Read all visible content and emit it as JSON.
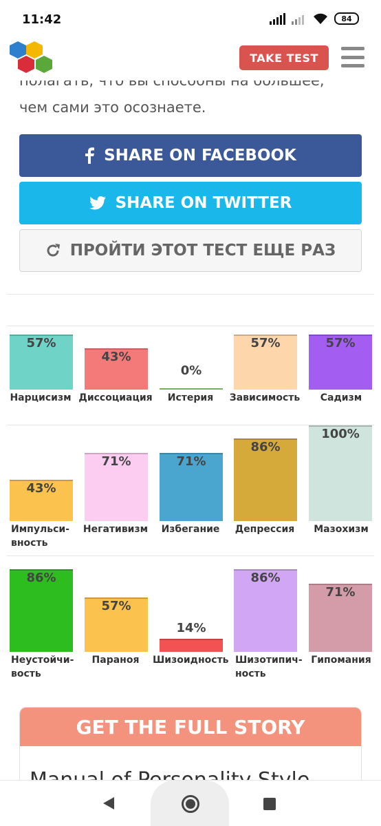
{
  "status_bar": {
    "time": "11:42",
    "battery": "84"
  },
  "header": {
    "take_test_label": "TAKE TEST"
  },
  "intro": {
    "line_cut": "полагать, что вы способны на большее,",
    "line": "чем сами это осознаете."
  },
  "buttons": {
    "facebook": "SHARE ON FACEBOOK",
    "twitter": "SHARE ON TWITTER",
    "retry": "ПРОЙТИ ЭТОТ ТЕСТ ЕЩЕ РАЗ"
  },
  "chart_data": {
    "type": "bar",
    "ylim": [
      0,
      100
    ],
    "rows": [
      {
        "categories": [
          "Нарцисизм",
          "Диссоциация",
          "Истерия",
          "Зависимость",
          "Садизм"
        ],
        "values": [
          57,
          43,
          0,
          57,
          57
        ],
        "labels": [
          "57%",
          "43%",
          "0%",
          "57%",
          "57%"
        ],
        "colors": [
          "#6fd3c7",
          "#f47a7a",
          "#8fdd6f",
          "#fdd6ab",
          "#a35df0"
        ]
      },
      {
        "categories": [
          "Импульси-вность",
          "Негативизм",
          "Избегание",
          "Депрессия",
          "Мазохизм"
        ],
        "values": [
          43,
          71,
          71,
          86,
          100
        ],
        "labels": [
          "43%",
          "71%",
          "71%",
          "86%",
          "100%"
        ],
        "colors": [
          "#fcc24e",
          "#fccdf0",
          "#4aa6cf",
          "#d6a93b",
          "#cfe4dd"
        ]
      },
      {
        "categories": [
          "Неустойчи-вость",
          "Параноя",
          "Шизоидность",
          "Шизотипич-ность",
          "Гипомания"
        ],
        "values": [
          86,
          57,
          14,
          86,
          71
        ],
        "labels": [
          "86%",
          "57%",
          "14%",
          "86%",
          "71%"
        ],
        "colors": [
          "#2dbd1e",
          "#fcc24e",
          "#f25252",
          "#d1a6f5",
          "#d49ba9"
        ]
      }
    ]
  },
  "story": {
    "title": "GET THE FULL STORY",
    "body_cut": "Manual of Personality Style"
  }
}
